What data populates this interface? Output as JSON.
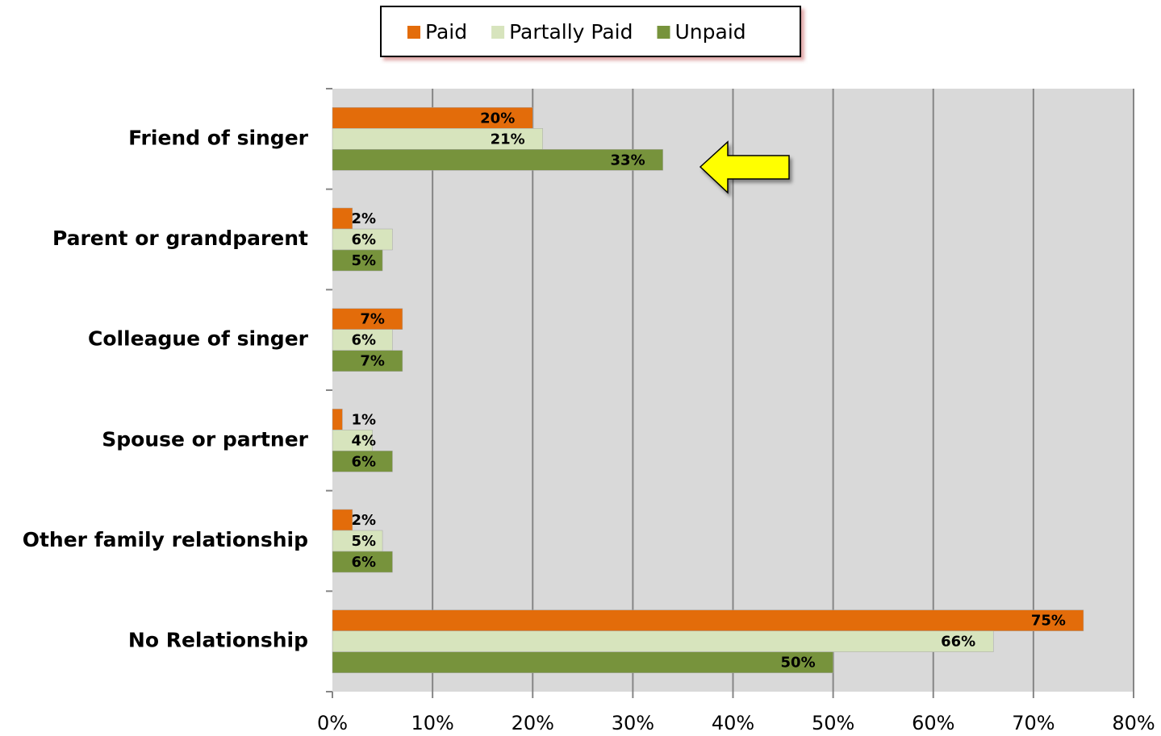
{
  "chart_data": {
    "type": "hbar",
    "categories": [
      "Friend of singer",
      "Parent or grandparent",
      "Colleague of singer",
      "Spouse or partner",
      "Other family relationship",
      "No Relationship"
    ],
    "series": [
      {
        "name": "Paid",
        "color": "#e36c0a",
        "values": [
          20,
          2,
          7,
          1,
          2,
          75
        ],
        "value_labels": [
          "20%",
          "2%",
          "7%",
          "1%",
          "2%",
          "75%"
        ]
      },
      {
        "name": "Partally Paid",
        "color": "#d7e4bd",
        "values": [
          21,
          6,
          6,
          4,
          5,
          66
        ],
        "value_labels": [
          "21%",
          "6%",
          "6%",
          "4%",
          "5%",
          "66%"
        ]
      },
      {
        "name": "Unpaid",
        "color": "#77933c",
        "values": [
          33,
          5,
          7,
          6,
          6,
          50
        ],
        "value_labels": [
          "33%",
          "5%",
          "7%",
          "6%",
          "6%",
          "50%"
        ]
      }
    ],
    "xlim": [
      0,
      80
    ],
    "xticks": [
      {
        "value": 0,
        "label": "0%"
      },
      {
        "value": 10,
        "label": "10%"
      },
      {
        "value": 20,
        "label": "20%"
      },
      {
        "value": 30,
        "label": "30%"
      },
      {
        "value": 40,
        "label": "40%"
      },
      {
        "value": 50,
        "label": "50%"
      },
      {
        "value": 60,
        "label": "60%"
      },
      {
        "value": 70,
        "label": "70%"
      },
      {
        "value": 80,
        "label": "80%"
      }
    ],
    "grid": true,
    "legend": "top"
  }
}
